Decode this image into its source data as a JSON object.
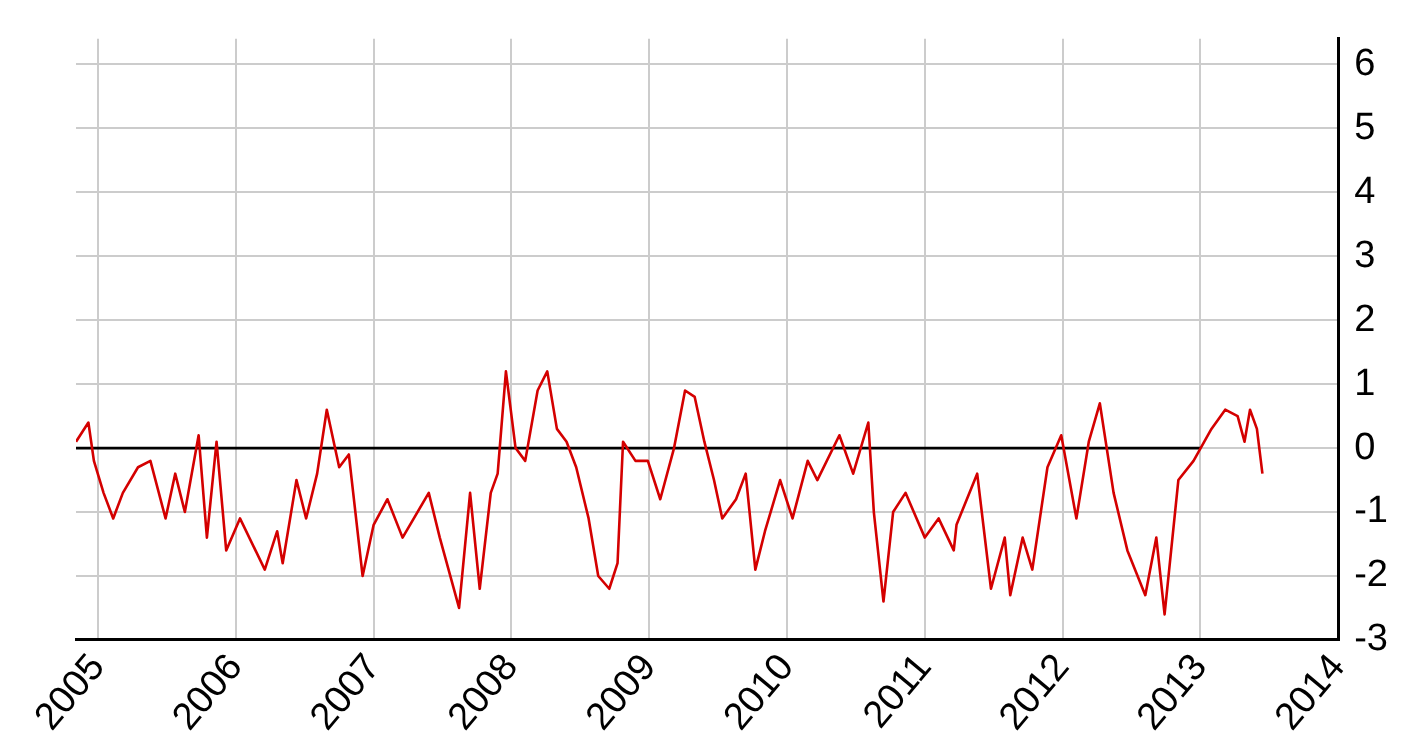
{
  "chart_data": {
    "type": "line",
    "xlim": [
      2004.84,
      2014
    ],
    "xticks": [
      2005,
      2006,
      2007,
      2008,
      2009,
      2010,
      2011,
      2012,
      2013,
      2014
    ],
    "ylim": [
      -3,
      6.4
    ],
    "yticks": [
      -3,
      -2,
      -1,
      0,
      1,
      2,
      3,
      4,
      5,
      6
    ],
    "grid": true,
    "legend": false,
    "marker": "none",
    "line_style": "solid",
    "series": [
      {
        "color": "#000000",
        "x": [
          2004.84,
          2013
        ],
        "values": [
          0,
          0
        ]
      },
      {
        "color": "#d40000",
        "x": [
          2004.84,
          2004.93,
          2004.97,
          2005.04,
          2005.11,
          2005.18,
          2005.29,
          2005.38,
          2005.49,
          2005.56,
          2005.63,
          2005.73,
          2005.79,
          2005.86,
          2005.93,
          2006.03,
          2006.21,
          2006.3,
          2006.34,
          2006.44,
          2006.51,
          2006.59,
          2006.66,
          2006.75,
          2006.82,
          2006.92,
          2007.0,
          2007.1,
          2007.21,
          2007.4,
          2007.48,
          2007.62,
          2007.7,
          2007.77,
          2007.85,
          2007.9,
          2007.96,
          2008.03,
          2008.1,
          2008.19,
          2008.26,
          2008.33,
          2008.4,
          2008.47,
          2008.56,
          2008.63,
          2008.71,
          2008.77,
          2008.81,
          2008.9,
          2008.99,
          2009.08,
          2009.18,
          2009.26,
          2009.33,
          2009.4,
          2009.47,
          2009.53,
          2009.63,
          2009.7,
          2009.77,
          2009.84,
          2009.95,
          2010.04,
          2010.15,
          2010.22,
          2010.38,
          2010.48,
          2010.59,
          2010.63,
          2010.7,
          2010.77,
          2010.86,
          2011.0,
          2011.1,
          2011.21,
          2011.23,
          2011.38,
          2011.48,
          2011.58,
          2011.62,
          2011.71,
          2011.78,
          2011.89,
          2011.99,
          2012.1,
          2012.19,
          2012.27,
          2012.37,
          2012.47,
          2012.6,
          2012.68,
          2012.74,
          2012.84,
          2012.95,
          2013.08,
          2013.18,
          2013.27,
          2013.32,
          2013.36,
          2013.41,
          2013.45
        ],
        "values": [
          0.1,
          0.4,
          -0.2,
          -0.7,
          -1.1,
          -0.7,
          -0.3,
          -0.2,
          -1.1,
          -0.4,
          -1.0,
          0.2,
          -1.4,
          0.1,
          -1.6,
          -1.1,
          -1.9,
          -1.3,
          -1.8,
          -0.5,
          -1.1,
          -0.4,
          0.6,
          -0.3,
          -0.1,
          -2.0,
          -1.2,
          -0.8,
          -1.4,
          -0.7,
          -1.4,
          -2.5,
          -0.7,
          -2.2,
          -0.7,
          -0.4,
          1.2,
          0.0,
          -0.2,
          0.9,
          1.2,
          0.3,
          0.1,
          -0.3,
          -1.1,
          -2.0,
          -2.2,
          -1.8,
          0.1,
          -0.2,
          -0.2,
          -0.8,
          0.0,
          0.9,
          0.8,
          0.1,
          -0.5,
          -1.1,
          -0.8,
          -0.4,
          -1.9,
          -1.3,
          -0.5,
          -1.1,
          -0.2,
          -0.5,
          0.2,
          -0.4,
          0.4,
          -1.0,
          -2.4,
          -1.0,
          -0.7,
          -1.4,
          -1.1,
          -1.6,
          -1.2,
          -0.4,
          -2.2,
          -1.4,
          -2.3,
          -1.4,
          -1.9,
          -0.3,
          0.2,
          -1.1,
          0.1,
          0.7,
          -0.7,
          -1.6,
          -2.3,
          -1.4,
          -2.6,
          -0.5,
          -0.2,
          0.3,
          0.6,
          0.5,
          0.1,
          0.6,
          0.3,
          -0.4
        ]
      }
    ]
  }
}
